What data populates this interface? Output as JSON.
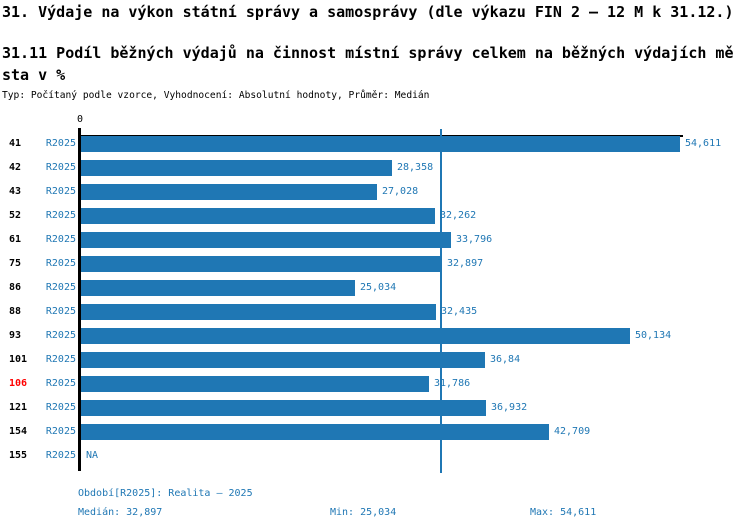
{
  "chart_data": {
    "type": "bar",
    "orientation": "horizontal",
    "title": "31. Výdaje na výkon státní správy a samosprávy (dle výkazu FIN 2 – 12 M k 31.12.)",
    "subtitle_lines": [
      "31.11 Podíl běžných výdajů na činnost místní správy celkem na běžných výdajích mě",
      "sta v %"
    ],
    "meta": "Typ: Počítaný podle vzorce, Vyhodnocení: Absolutní hodnoty, Průměr: Medián",
    "x_axis": {
      "origin_label": "0",
      "min": 0,
      "max": 54.93,
      "gridlines": false
    },
    "legend_position": "none",
    "series_label": "R2025",
    "categories": [
      "41",
      "42",
      "43",
      "52",
      "61",
      "75",
      "86",
      "88",
      "93",
      "101",
      "106",
      "121",
      "154",
      "155"
    ],
    "values": [
      54.611,
      28.358,
      27.028,
      32.262,
      33.796,
      32.897,
      25.034,
      32.435,
      50.134,
      36.84,
      31.786,
      36.932,
      42.709,
      null
    ],
    "value_labels": [
      "54,611",
      "28,358",
      "27,028",
      "32,262",
      "33,796",
      "32,897",
      "25,034",
      "32,435",
      "50,134",
      "36,84",
      "31,786",
      "36,932",
      "42,709",
      "NA"
    ],
    "highlighted_category": "106",
    "median_value": 32.897,
    "footer": {
      "period": "Období[R2025]: Realita – 2025",
      "median": "Medián: 32,897",
      "min": "Min: 25,034",
      "max": "Max: 54,611"
    },
    "colors": {
      "bar": "#1f77b4",
      "label_blue": "#1f77b4",
      "highlight_red": "#ff0000",
      "axis": "#000000"
    }
  }
}
